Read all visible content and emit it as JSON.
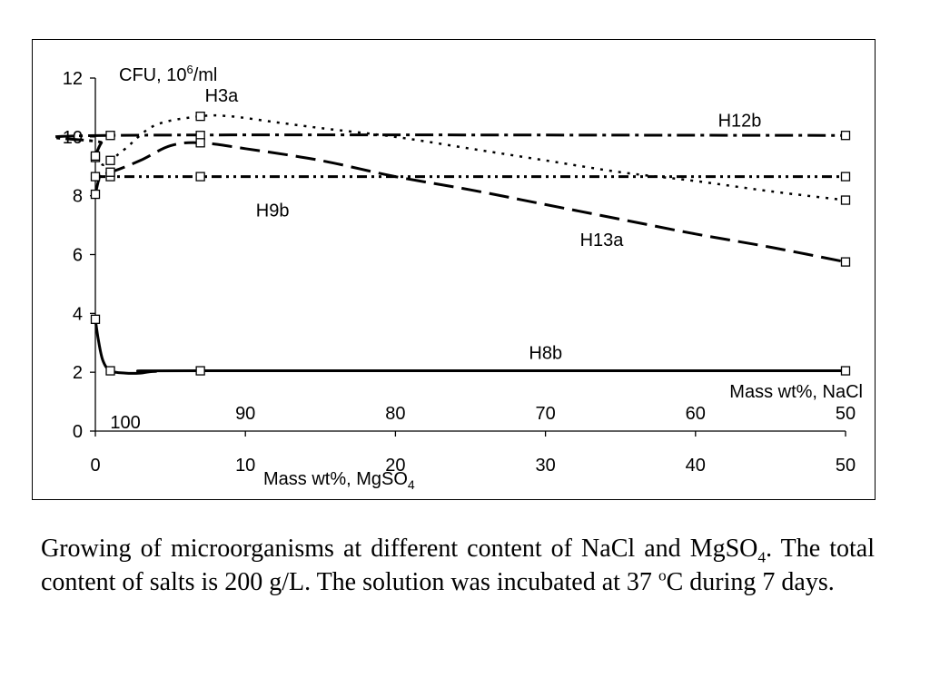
{
  "chart_data": {
    "type": "line",
    "x_label": "Mass wt%, MgSO",
    "x_label_sub": "4",
    "x2_label": "Mass wt%, NaCl",
    "y_label": "CFU, 10",
    "y_label_sup": "6",
    "y_label_tail": "/ml",
    "xlim": [
      0,
      50
    ],
    "ylim": [
      0,
      12
    ],
    "x_ticks": [
      0,
      10,
      20,
      30,
      40,
      50
    ],
    "y_ticks": [
      0,
      2,
      4,
      6,
      8,
      10,
      12
    ],
    "x2_ticks": [
      {
        "label": "100",
        "x": 2
      },
      {
        "label": "90",
        "x": 10
      },
      {
        "label": "80",
        "x": 20
      },
      {
        "label": "70",
        "x": 30
      },
      {
        "label": "60",
        "x": 40
      },
      {
        "label": "50",
        "x": 50
      }
    ],
    "series": [
      {
        "name": "H3a",
        "dash": "3,7",
        "stroke_width": 2.5,
        "markers": [
          [
            0,
            9.3
          ],
          [
            1,
            9.2
          ],
          [
            7,
            10.7
          ],
          [
            50,
            7.85
          ]
        ],
        "curve": [
          [
            0,
            9.3
          ],
          [
            0.5,
            9.05
          ],
          [
            1,
            9.2
          ],
          [
            2,
            9.6
          ],
          [
            4,
            10.4
          ],
          [
            7,
            10.7
          ],
          [
            9,
            10.7
          ],
          [
            12,
            10.5
          ],
          [
            15,
            10.3
          ],
          [
            20,
            10.0
          ],
          [
            25,
            9.6
          ],
          [
            30,
            9.2
          ],
          [
            35,
            8.8
          ],
          [
            40,
            8.5
          ],
          [
            45,
            8.15
          ],
          [
            50,
            7.85
          ]
        ],
        "label": "H3a",
        "label_at": [
          7.3,
          11.2
        ]
      },
      {
        "name": "H9b",
        "dash": "11,5,3,5,3,5",
        "stroke_width": 3,
        "markers": [
          [
            0,
            8.65
          ],
          [
            1,
            8.65
          ],
          [
            7,
            8.65
          ],
          [
            50,
            8.65
          ]
        ],
        "curve": [
          [
            0,
            8.65
          ],
          [
            50,
            8.65
          ]
        ],
        "label": "H9b",
        "label_at": [
          10.7,
          7.3
        ]
      },
      {
        "name": "H12b",
        "dash": "20,6,4,6",
        "stroke_width": 3,
        "markers": [
          [
            0,
            9.35
          ],
          [
            1,
            10.05
          ],
          [
            7,
            10.05
          ],
          [
            50,
            10.05
          ]
        ],
        "curve": [
          [
            0,
            9.35
          ],
          [
            0.4,
            9.8
          ],
          [
            1,
            10.05
          ],
          [
            50,
            10.05
          ]
        ],
        "label": "H12b",
        "label_at": [
          41.5,
          10.35
        ]
      },
      {
        "name": "H13a",
        "dash": "22,9",
        "stroke_width": 3,
        "markers": [
          [
            0,
            8.05
          ],
          [
            1,
            8.8
          ],
          [
            7,
            9.8
          ],
          [
            50,
            5.75
          ]
        ],
        "curve": [
          [
            0,
            8.05
          ],
          [
            0.4,
            8.8
          ],
          [
            1,
            8.8
          ],
          [
            3,
            9.2
          ],
          [
            5,
            9.7
          ],
          [
            7,
            9.8
          ],
          [
            10,
            9.6
          ],
          [
            15,
            9.2
          ],
          [
            20,
            8.65
          ],
          [
            25,
            8.2
          ],
          [
            30,
            7.7
          ],
          [
            35,
            7.2
          ],
          [
            40,
            6.7
          ],
          [
            45,
            6.25
          ],
          [
            50,
            5.75
          ]
        ],
        "label": "H13a",
        "label_at": [
          32.3,
          6.3
        ]
      },
      {
        "name": "H8b",
        "dash": "",
        "stroke_width": 3,
        "markers": [
          [
            0,
            3.8
          ],
          [
            1,
            2.05
          ],
          [
            7,
            2.05
          ],
          [
            50,
            2.05
          ]
        ],
        "curve": [
          [
            0,
            3.8
          ],
          [
            0.2,
            3.1
          ],
          [
            0.5,
            2.4
          ],
          [
            1,
            2.05
          ],
          [
            2,
            1.97
          ],
          [
            3,
            1.97
          ],
          [
            4,
            2.03
          ],
          [
            7,
            2.05
          ],
          [
            50,
            2.05
          ]
        ],
        "label": "H8b",
        "label_at": [
          28.9,
          2.45
        ]
      }
    ]
  },
  "caption": {
    "part1": "Growing of microorganisms at different content of NaCl and MgSO",
    "part1_sub": "4",
    "part2": ". The total content of salts is 200 g/L. The solution was incubated at 37 ",
    "part2_sup": "o",
    "part3": "C during 7 days."
  }
}
